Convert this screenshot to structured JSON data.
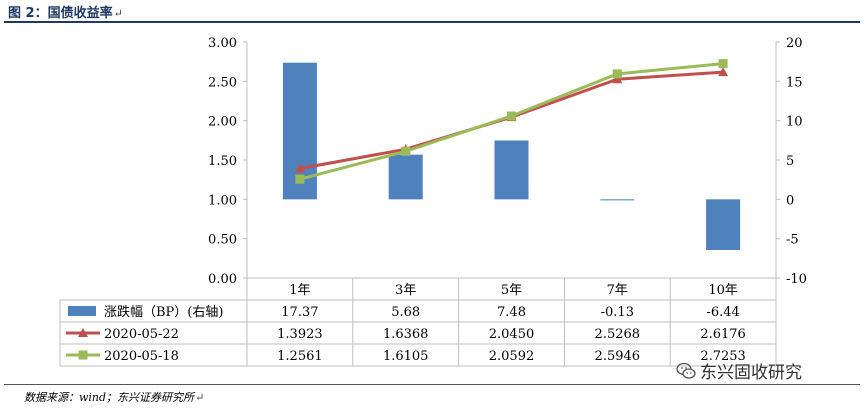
{
  "figure": {
    "title": "图 2：国债收益率",
    "return_mark": "↵",
    "source": "数据来源：wind；东兴证券研究所",
    "watermark": "东兴固收研究"
  },
  "chart_data": {
    "type": "bar+line",
    "categories": [
      "1年",
      "3年",
      "5年",
      "7年",
      "10年"
    ],
    "bar_series": {
      "name": "涨跌幅（BP）(右轴)",
      "color": "#4f81bd",
      "values": [
        17.37,
        5.68,
        7.48,
        -0.13,
        -6.44
      ],
      "display": [
        "17.37",
        "5.68",
        "7.48",
        "-0.13",
        "-6.44"
      ]
    },
    "line_series": [
      {
        "name": "2020-05-22",
        "color": "#c0504d",
        "marker": "triangle",
        "values": [
          1.3923,
          1.6368,
          2.045,
          2.5268,
          2.6176
        ],
        "display": [
          "1.3923",
          "1.6368",
          "2.0450",
          "2.5268",
          "2.6176"
        ]
      },
      {
        "name": "2020-05-18",
        "color": "#9bbb59",
        "marker": "square",
        "values": [
          1.2561,
          1.6105,
          2.0592,
          2.5946,
          2.7253
        ],
        "display": [
          "1.2561",
          "1.6105",
          "2.0592",
          "2.5946",
          "2.7253"
        ]
      }
    ],
    "y_left": {
      "ticks": [
        "3.00",
        "2.50",
        "2.00",
        "1.50",
        "1.00",
        "0.50",
        "0.00"
      ],
      "lim": [
        0,
        3
      ]
    },
    "y_right": {
      "ticks": [
        "20",
        "15",
        "10",
        "5",
        "0",
        "-5",
        "-10"
      ],
      "lim": [
        -10,
        20
      ]
    },
    "grid": false,
    "legend": "data-table"
  }
}
